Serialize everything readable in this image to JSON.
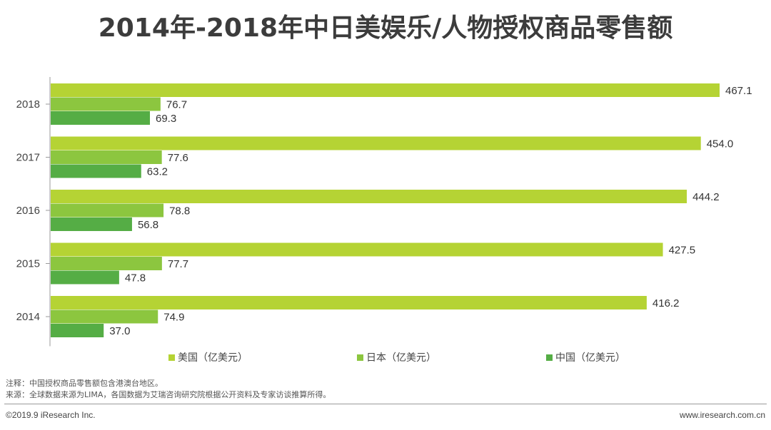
{
  "title": "2014年-2018年中日美娱乐/人物授权商品零售额",
  "chart_data": {
    "type": "bar",
    "orientation": "horizontal",
    "title": "2014年-2018年中日美娱乐/人物授权商品零售额",
    "categories": [
      "2018",
      "2017",
      "2016",
      "2015",
      "2014"
    ],
    "series": [
      {
        "name": "美国（亿美元）",
        "color": "#b5d334",
        "values": [
          467.1,
          454.0,
          444.2,
          427.5,
          416.2
        ]
      },
      {
        "name": "日本（亿美元）",
        "color": "#8cc63f",
        "values": [
          76.7,
          77.6,
          78.8,
          77.7,
          74.9
        ]
      },
      {
        "name": "中国（亿美元）",
        "color": "#55ad45",
        "values": [
          69.3,
          63.2,
          56.8,
          47.8,
          37.0
        ]
      }
    ],
    "xlim": [
      0,
      470
    ],
    "legend": "bottom",
    "grid": false,
    "xlabel": "",
    "ylabel": ""
  },
  "footer": {
    "note": "注释：中国授权商品零售额包含港澳台地区。",
    "source": "来源：全球数据来源为LIMA，各国数据为艾瑞咨询研究院根据公开资料及专家访谈推算所得。",
    "copyright": "©2019.9 iResearch Inc.",
    "website": "www.iresearch.com.cn"
  }
}
